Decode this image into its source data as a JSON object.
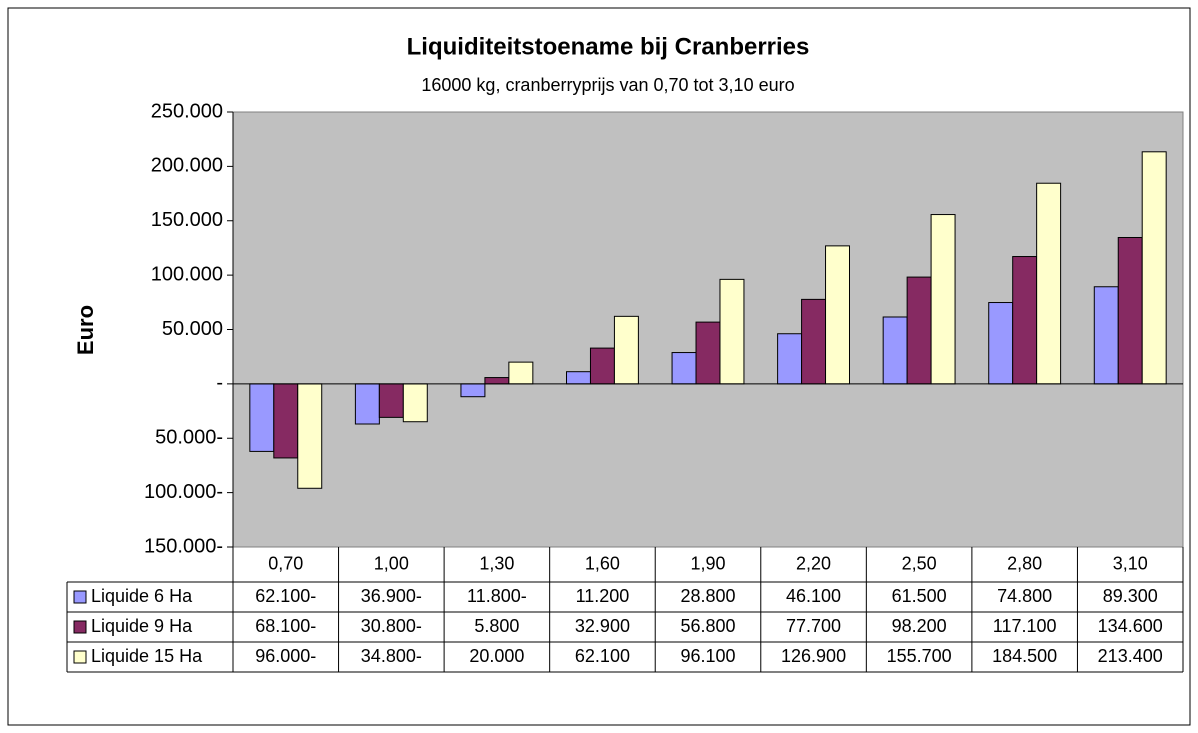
{
  "chart_data": {
    "type": "bar",
    "title": "Liquiditeitstoename bij Cranberries",
    "subtitle": "16000 kg, cranberryprijs van 0,70 tot  3,10 euro",
    "y_label": "Euro",
    "categories": [
      "0,70",
      "1,00",
      "1,30",
      "1,60",
      "1,90",
      "2,20",
      "2,50",
      "2,80",
      "3,10"
    ],
    "series": [
      {
        "name": "Liquide 6 Ha",
        "color": "#9999ff",
        "values": [
          -62100,
          -36900,
          -11800,
          11200,
          28800,
          46100,
          61500,
          74800,
          89300
        ],
        "value_labels": [
          "62.100-",
          "36.900-",
          "11.800-",
          "11.200",
          "28.800",
          "46.100",
          "61.500",
          "74.800",
          "89.300"
        ]
      },
      {
        "name": "Liquide 9 Ha",
        "color": "#862a62",
        "values": [
          -68100,
          -30800,
          5800,
          32900,
          56800,
          77700,
          98200,
          117100,
          134600
        ],
        "value_labels": [
          "68.100-",
          "30.800-",
          "5.800",
          "32.900",
          "56.800",
          "77.700",
          "98.200",
          "117.100",
          "134.600"
        ]
      },
      {
        "name": "Liquide 15 Ha",
        "color": "#ffffcc",
        "values": [
          -96000,
          -34800,
          20000,
          62100,
          96100,
          126900,
          155700,
          184500,
          213400
        ],
        "value_labels": [
          "96.000-",
          "34.800-",
          "20.000",
          "62.100",
          "96.100",
          "126.900",
          "155.700",
          "184.500",
          "213.400"
        ]
      }
    ],
    "ylim": [
      -150000,
      250000
    ],
    "yticks": [
      {
        "value": -150000,
        "label": "150.000-"
      },
      {
        "value": -100000,
        "label": "100.000-"
      },
      {
        "value": -50000,
        "label": "50.000-"
      },
      {
        "value": 0,
        "label": "-"
      },
      {
        "value": 50000,
        "label": "50.000"
      },
      {
        "value": 100000,
        "label": "100.000"
      },
      {
        "value": 150000,
        "label": "150.000"
      },
      {
        "value": 200000,
        "label": "200.000"
      },
      {
        "value": 250000,
        "label": "250.000"
      }
    ],
    "plot_background": "#c0c0c0"
  }
}
